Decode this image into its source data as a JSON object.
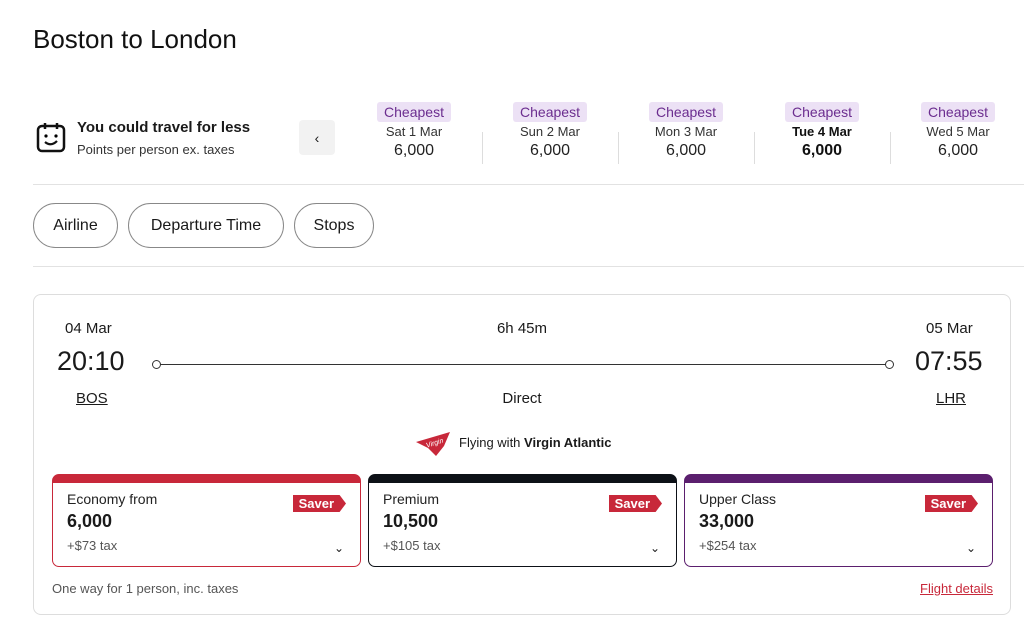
{
  "title": "Boston to London",
  "promo": {
    "title": "You could travel for less",
    "subtitle": "Points per person ex. taxes",
    "prev_label": "‹"
  },
  "dates": [
    {
      "badge": "Cheapest",
      "day": "Sat 1 Mar",
      "points": "6,000"
    },
    {
      "badge": "Cheapest",
      "day": "Sun 2 Mar",
      "points": "6,000"
    },
    {
      "badge": "Cheapest",
      "day": "Mon 3 Mar",
      "points": "6,000"
    },
    {
      "badge": "Cheapest",
      "day": "Tue 4 Mar",
      "points": "6,000",
      "selected": true
    },
    {
      "badge": "Cheapest",
      "day": "Wed 5 Mar",
      "points": "6,000"
    }
  ],
  "filters": [
    "Airline",
    "Departure Time",
    "Stops"
  ],
  "flight": {
    "dep_date": "04 Mar",
    "dep_time": "20:10",
    "dep_airport": "BOS",
    "duration": "6h 45m",
    "stops": "Direct",
    "arr_date": "05 Mar",
    "arr_time": "07:55",
    "arr_airport": "LHR",
    "flying_with": "Flying with",
    "airline": "Virgin Atlantic",
    "logo_text": "Virgin"
  },
  "fares": [
    {
      "name": "Economy from",
      "points": "6,000",
      "tax": "+$73 tax",
      "badge": "Saver",
      "color": "#c8283a"
    },
    {
      "name": "Premium",
      "points": "10,500",
      "tax": "+$105 tax",
      "badge": "Saver",
      "color": "#0d1117"
    },
    {
      "name": "Upper Class",
      "points": "33,000",
      "tax": "+$254 tax",
      "badge": "Saver",
      "color": "#5b1f6e"
    }
  ],
  "footer": {
    "note": "One way for 1 person, inc. taxes",
    "details_link": "Flight details"
  }
}
